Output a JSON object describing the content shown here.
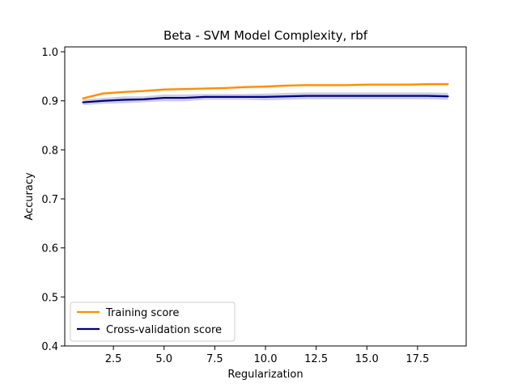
{
  "chart_data": {
    "type": "line",
    "title": "Beta - SVM Model Complexity, rbf",
    "xlabel": "Regularization",
    "ylabel": "Accuracy",
    "xlim": [
      0.1,
      19.9
    ],
    "ylim": [
      0.4,
      1.01
    ],
    "xticks": [
      2.5,
      5.0,
      7.5,
      10.0,
      12.5,
      15.0,
      17.5
    ],
    "xtick_labels": [
      "2.5",
      "5.0",
      "7.5",
      "10.0",
      "12.5",
      "15.0",
      "17.5"
    ],
    "yticks": [
      0.4,
      0.5,
      0.6,
      0.7,
      0.8,
      0.9,
      1.0
    ],
    "ytick_labels": [
      "0.4",
      "0.5",
      "0.6",
      "0.7",
      "0.8",
      "0.9",
      "1.0"
    ],
    "grid": false,
    "legend_position": "lower-left",
    "x": [
      1,
      2,
      3,
      4,
      5,
      6,
      7,
      8,
      9,
      10,
      11,
      12,
      13,
      14,
      15,
      16,
      17,
      18,
      19
    ],
    "series": [
      {
        "name": "Training score",
        "color": "#ff8c00",
        "values": [
          0.905,
          0.915,
          0.918,
          0.92,
          0.923,
          0.924,
          0.925,
          0.926,
          0.928,
          0.929,
          0.931,
          0.932,
          0.932,
          0.932,
          0.933,
          0.933,
          0.933,
          0.934,
          0.934
        ],
        "band": [
          0.003,
          0.003,
          0.003,
          0.003,
          0.003,
          0.003,
          0.003,
          0.003,
          0.003,
          0.003,
          0.003,
          0.003,
          0.003,
          0.003,
          0.003,
          0.003,
          0.003,
          0.003,
          0.003
        ]
      },
      {
        "name": "Cross-validation score",
        "color": "#000080",
        "values": [
          0.897,
          0.9,
          0.902,
          0.903,
          0.906,
          0.906,
          0.908,
          0.908,
          0.908,
          0.908,
          0.909,
          0.91,
          0.91,
          0.91,
          0.91,
          0.91,
          0.91,
          0.91,
          0.909
        ],
        "band": [
          0.006,
          0.006,
          0.007,
          0.006,
          0.007,
          0.007,
          0.006,
          0.006,
          0.006,
          0.007,
          0.007,
          0.007,
          0.007,
          0.007,
          0.007,
          0.007,
          0.007,
          0.007,
          0.007
        ]
      }
    ]
  }
}
